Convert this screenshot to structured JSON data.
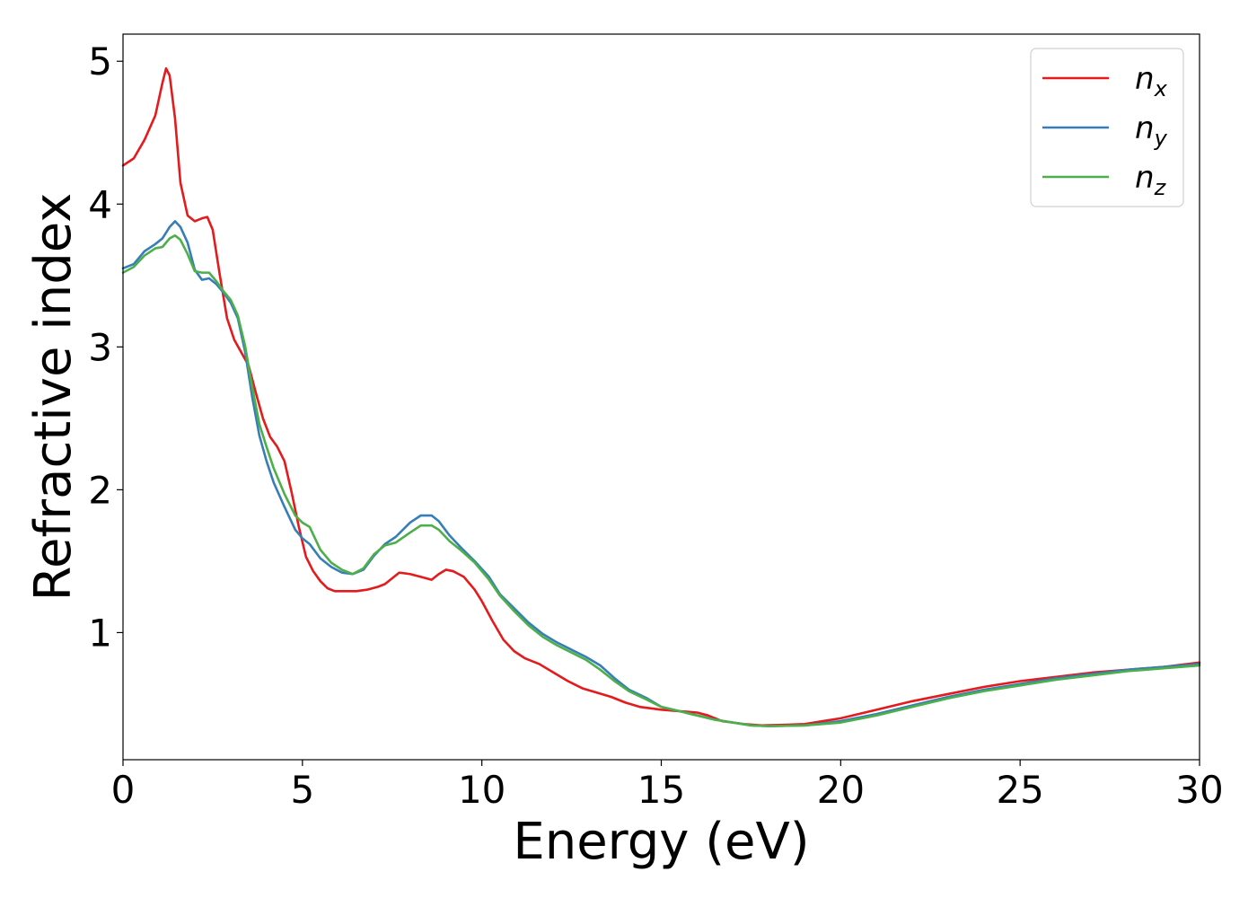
{
  "chart_data": {
    "type": "line",
    "title": "",
    "xlabel": "Energy (eV)",
    "ylabel": "Refractive index",
    "xlim": [
      0,
      30
    ],
    "ylim": [
      0.11,
      5.19
    ],
    "xticks": [
      0,
      5,
      10,
      15,
      20,
      25,
      30
    ],
    "yticks": [
      1,
      2,
      3,
      4,
      5
    ],
    "grid": false,
    "legend_position": "top-right",
    "series": [
      {
        "name": "n_x",
        "label_base": "n",
        "label_sub": "x",
        "color": "#e41a1c",
        "points": [
          [
            0,
            4.27
          ],
          [
            0.3,
            4.32
          ],
          [
            0.6,
            4.45
          ],
          [
            0.9,
            4.62
          ],
          [
            1.1,
            4.85
          ],
          [
            1.2,
            4.95
          ],
          [
            1.3,
            4.9
          ],
          [
            1.45,
            4.6
          ],
          [
            1.6,
            4.15
          ],
          [
            1.8,
            3.92
          ],
          [
            2.0,
            3.88
          ],
          [
            2.2,
            3.9
          ],
          [
            2.35,
            3.91
          ],
          [
            2.5,
            3.82
          ],
          [
            2.7,
            3.5
          ],
          [
            2.9,
            3.2
          ],
          [
            3.1,
            3.05
          ],
          [
            3.3,
            2.96
          ],
          [
            3.5,
            2.87
          ],
          [
            3.7,
            2.68
          ],
          [
            3.9,
            2.5
          ],
          [
            4.1,
            2.37
          ],
          [
            4.3,
            2.3
          ],
          [
            4.5,
            2.2
          ],
          [
            4.7,
            1.98
          ],
          [
            4.9,
            1.74
          ],
          [
            5.1,
            1.53
          ],
          [
            5.3,
            1.43
          ],
          [
            5.5,
            1.36
          ],
          [
            5.7,
            1.31
          ],
          [
            5.9,
            1.29
          ],
          [
            6.2,
            1.29
          ],
          [
            6.5,
            1.29
          ],
          [
            6.8,
            1.3
          ],
          [
            7.1,
            1.32
          ],
          [
            7.3,
            1.34
          ],
          [
            7.5,
            1.38
          ],
          [
            7.7,
            1.42
          ],
          [
            8.0,
            1.41
          ],
          [
            8.3,
            1.39
          ],
          [
            8.6,
            1.37
          ],
          [
            8.8,
            1.41
          ],
          [
            9.0,
            1.44
          ],
          [
            9.2,
            1.43
          ],
          [
            9.5,
            1.39
          ],
          [
            9.8,
            1.3
          ],
          [
            10.0,
            1.22
          ],
          [
            10.3,
            1.08
          ],
          [
            10.6,
            0.95
          ],
          [
            10.9,
            0.87
          ],
          [
            11.2,
            0.82
          ],
          [
            11.6,
            0.78
          ],
          [
            12.0,
            0.72
          ],
          [
            12.4,
            0.66
          ],
          [
            12.8,
            0.61
          ],
          [
            13.2,
            0.58
          ],
          [
            13.6,
            0.55
          ],
          [
            14.0,
            0.51
          ],
          [
            14.4,
            0.48
          ],
          [
            15.0,
            0.46
          ],
          [
            15.5,
            0.45
          ],
          [
            16.0,
            0.44
          ],
          [
            16.3,
            0.42
          ],
          [
            16.7,
            0.38
          ],
          [
            17.3,
            0.36
          ],
          [
            17.8,
            0.35
          ],
          [
            18.5,
            0.355
          ],
          [
            19.0,
            0.36
          ],
          [
            19.5,
            0.38
          ],
          [
            20,
            0.4
          ],
          [
            21,
            0.46
          ],
          [
            22,
            0.52
          ],
          [
            23,
            0.57
          ],
          [
            24,
            0.62
          ],
          [
            25,
            0.66
          ],
          [
            26,
            0.69
          ],
          [
            27,
            0.72
          ],
          [
            28,
            0.74
          ],
          [
            29,
            0.76
          ],
          [
            30,
            0.79
          ]
        ]
      },
      {
        "name": "n_y",
        "label_base": "n",
        "label_sub": "y",
        "color": "#377eb8",
        "points": [
          [
            0,
            3.55
          ],
          [
            0.3,
            3.58
          ],
          [
            0.6,
            3.67
          ],
          [
            0.9,
            3.72
          ],
          [
            1.1,
            3.76
          ],
          [
            1.3,
            3.84
          ],
          [
            1.45,
            3.88
          ],
          [
            1.6,
            3.84
          ],
          [
            1.8,
            3.73
          ],
          [
            2.0,
            3.54
          ],
          [
            2.2,
            3.47
          ],
          [
            2.4,
            3.48
          ],
          [
            2.6,
            3.44
          ],
          [
            2.8,
            3.38
          ],
          [
            3.0,
            3.31
          ],
          [
            3.2,
            3.2
          ],
          [
            3.4,
            2.97
          ],
          [
            3.6,
            2.65
          ],
          [
            3.8,
            2.38
          ],
          [
            4.0,
            2.2
          ],
          [
            4.2,
            2.05
          ],
          [
            4.5,
            1.88
          ],
          [
            4.8,
            1.72
          ],
          [
            5.0,
            1.66
          ],
          [
            5.2,
            1.62
          ],
          [
            5.5,
            1.52
          ],
          [
            5.8,
            1.46
          ],
          [
            6.1,
            1.42
          ],
          [
            6.4,
            1.41
          ],
          [
            6.7,
            1.44
          ],
          [
            7.0,
            1.54
          ],
          [
            7.3,
            1.62
          ],
          [
            7.6,
            1.67
          ],
          [
            8.0,
            1.77
          ],
          [
            8.3,
            1.82
          ],
          [
            8.6,
            1.82
          ],
          [
            8.8,
            1.78
          ],
          [
            9.1,
            1.68
          ],
          [
            9.4,
            1.6
          ],
          [
            9.8,
            1.5
          ],
          [
            10.2,
            1.39
          ],
          [
            10.5,
            1.27
          ],
          [
            10.9,
            1.17
          ],
          [
            11.3,
            1.07
          ],
          [
            11.7,
            0.99
          ],
          [
            12.1,
            0.93
          ],
          [
            12.5,
            0.88
          ],
          [
            12.9,
            0.83
          ],
          [
            13.3,
            0.77
          ],
          [
            13.7,
            0.68
          ],
          [
            14.1,
            0.6
          ],
          [
            14.6,
            0.54
          ],
          [
            15.0,
            0.48
          ],
          [
            15.5,
            0.45
          ],
          [
            16.0,
            0.42
          ],
          [
            16.5,
            0.39
          ],
          [
            17.0,
            0.37
          ],
          [
            17.5,
            0.35
          ],
          [
            18.0,
            0.345
          ],
          [
            19.0,
            0.35
          ],
          [
            20,
            0.38
          ],
          [
            21,
            0.43
          ],
          [
            22,
            0.49
          ],
          [
            23,
            0.55
          ],
          [
            24,
            0.6
          ],
          [
            25,
            0.64
          ],
          [
            26,
            0.68
          ],
          [
            27,
            0.71
          ],
          [
            28,
            0.74
          ],
          [
            29,
            0.76
          ],
          [
            30,
            0.78
          ]
        ]
      },
      {
        "name": "n_z",
        "label_base": "n",
        "label_sub": "z",
        "color": "#4daf4a",
        "points": [
          [
            0,
            3.52
          ],
          [
            0.3,
            3.56
          ],
          [
            0.6,
            3.64
          ],
          [
            0.9,
            3.69
          ],
          [
            1.1,
            3.7
          ],
          [
            1.3,
            3.76
          ],
          [
            1.45,
            3.78
          ],
          [
            1.6,
            3.75
          ],
          [
            1.8,
            3.65
          ],
          [
            2.0,
            3.53
          ],
          [
            2.2,
            3.52
          ],
          [
            2.4,
            3.52
          ],
          [
            2.6,
            3.46
          ],
          [
            2.8,
            3.39
          ],
          [
            3.0,
            3.33
          ],
          [
            3.2,
            3.22
          ],
          [
            3.4,
            3.01
          ],
          [
            3.6,
            2.72
          ],
          [
            3.8,
            2.46
          ],
          [
            4.0,
            2.3
          ],
          [
            4.2,
            2.15
          ],
          [
            4.5,
            1.97
          ],
          [
            4.8,
            1.82
          ],
          [
            5.0,
            1.77
          ],
          [
            5.2,
            1.74
          ],
          [
            5.5,
            1.58
          ],
          [
            5.8,
            1.49
          ],
          [
            6.1,
            1.44
          ],
          [
            6.4,
            1.41
          ],
          [
            6.7,
            1.45
          ],
          [
            7.0,
            1.55
          ],
          [
            7.3,
            1.61
          ],
          [
            7.6,
            1.63
          ],
          [
            8.0,
            1.7
          ],
          [
            8.3,
            1.75
          ],
          [
            8.6,
            1.75
          ],
          [
            8.8,
            1.72
          ],
          [
            9.1,
            1.64
          ],
          [
            9.4,
            1.58
          ],
          [
            9.8,
            1.49
          ],
          [
            10.2,
            1.37
          ],
          [
            10.5,
            1.26
          ],
          [
            10.9,
            1.15
          ],
          [
            11.3,
            1.05
          ],
          [
            11.7,
            0.97
          ],
          [
            12.1,
            0.91
          ],
          [
            12.5,
            0.86
          ],
          [
            12.9,
            0.81
          ],
          [
            13.3,
            0.74
          ],
          [
            13.7,
            0.66
          ],
          [
            14.1,
            0.59
          ],
          [
            14.6,
            0.53
          ],
          [
            15.0,
            0.48
          ],
          [
            15.5,
            0.45
          ],
          [
            16.0,
            0.42
          ],
          [
            16.5,
            0.39
          ],
          [
            17.0,
            0.37
          ],
          [
            17.5,
            0.35
          ],
          [
            18.0,
            0.345
          ],
          [
            19.0,
            0.35
          ],
          [
            20,
            0.37
          ],
          [
            21,
            0.42
          ],
          [
            22,
            0.48
          ],
          [
            23,
            0.54
          ],
          [
            24,
            0.59
          ],
          [
            25,
            0.63
          ],
          [
            26,
            0.67
          ],
          [
            27,
            0.7
          ],
          [
            28,
            0.73
          ],
          [
            29,
            0.75
          ],
          [
            30,
            0.77
          ]
        ]
      }
    ]
  }
}
